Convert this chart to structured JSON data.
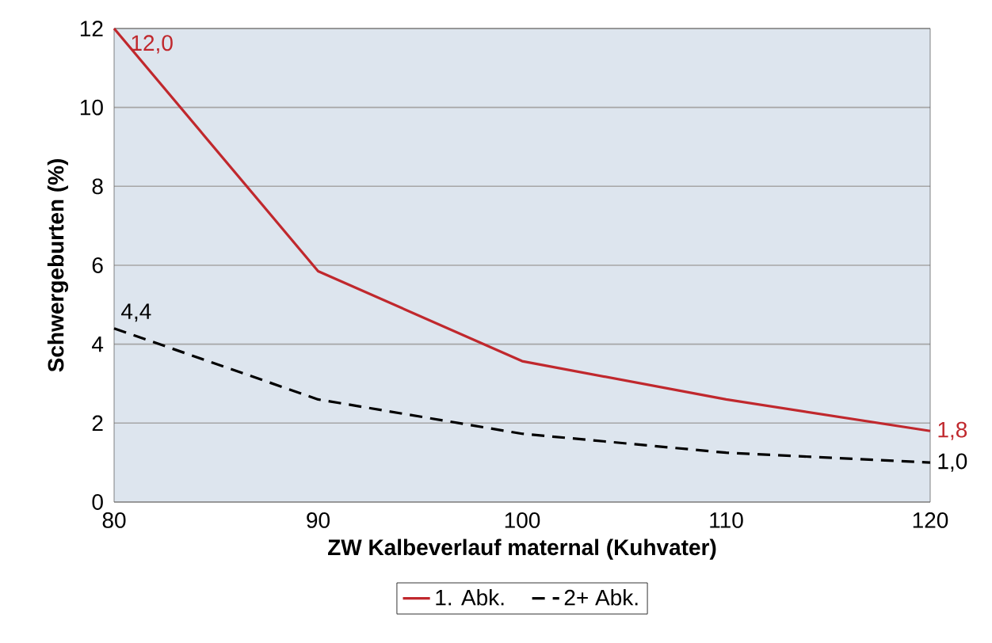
{
  "chart_data": {
    "type": "line",
    "xlabel": "ZW Kalbeverlauf maternal (Kuhvater)",
    "ylabel": "Schwergeburten (%)",
    "x": [
      80,
      90,
      100,
      110,
      120
    ],
    "series": [
      {
        "name": "1. Abk.",
        "color": "#c0282d",
        "line_style": "solid",
        "values": [
          12.0,
          5.85,
          3.57,
          2.6,
          1.8
        ],
        "value_labels": [
          "12,0",
          null,
          null,
          null,
          "1,8"
        ]
      },
      {
        "name": "2+ Abk.",
        "color": "#000000",
        "line_style": "dashed",
        "values": [
          4.4,
          2.6,
          1.73,
          1.25,
          1.0
        ],
        "value_labels": [
          "4,4",
          null,
          null,
          null,
          "1,0"
        ]
      }
    ],
    "xlim": [
      80,
      120
    ],
    "xticks": [
      80,
      90,
      100,
      110,
      120
    ],
    "ylim": [
      0,
      12
    ],
    "yticks": [
      0,
      2,
      4,
      6,
      8,
      10,
      12
    ],
    "grid": "y",
    "legend": "bottom",
    "marker": "none"
  }
}
